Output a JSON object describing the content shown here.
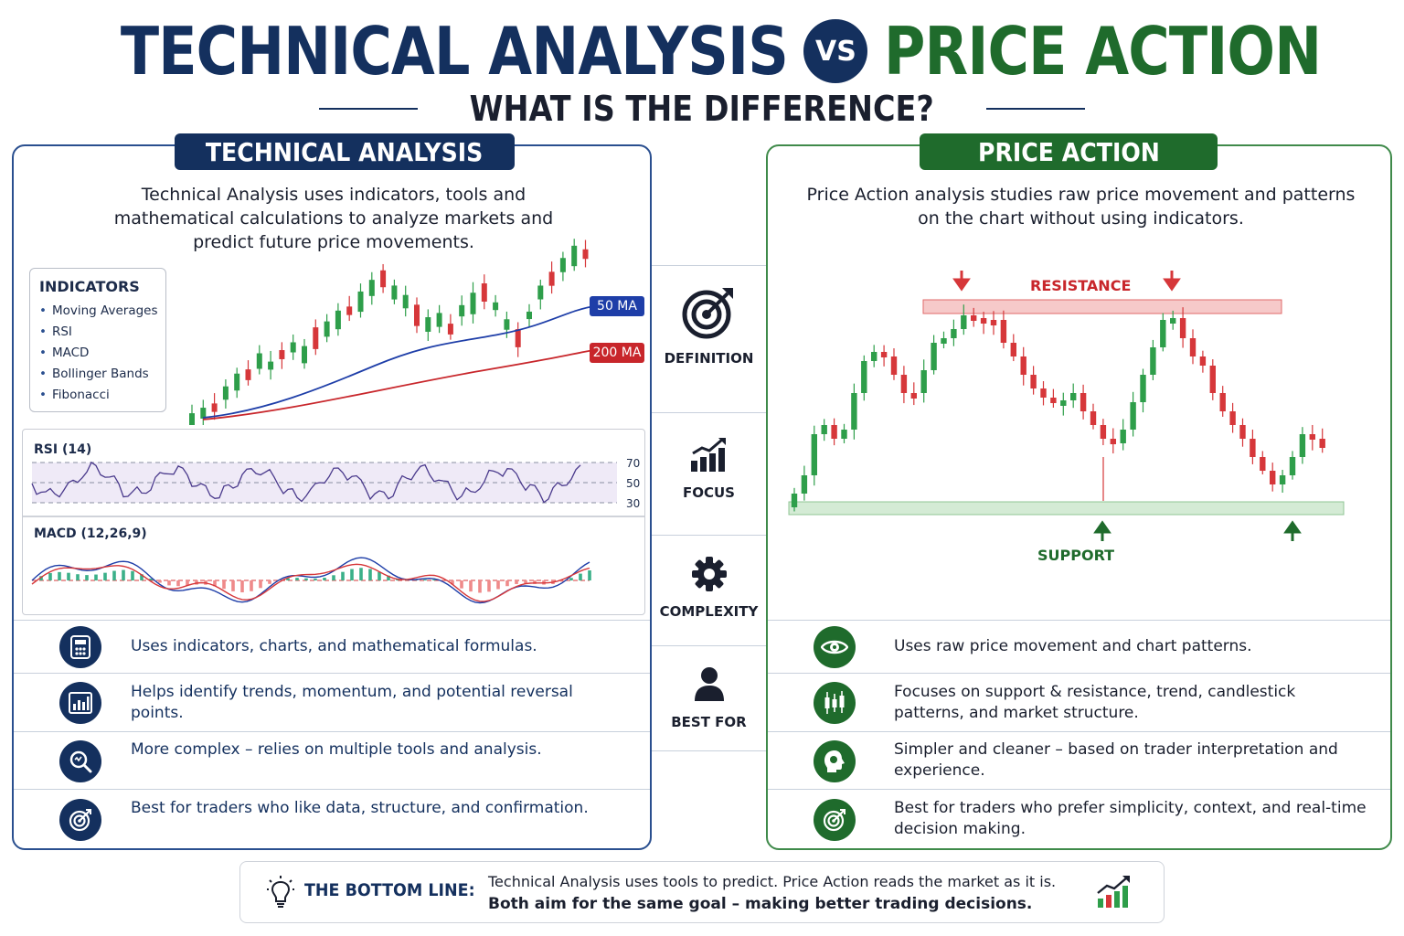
{
  "header": {
    "title_left": "TECHNICAL ANALYSIS",
    "vs": "VS",
    "title_right": "PRICE ACTION",
    "subtitle": "WHAT IS THE DIFFERENCE?"
  },
  "colors": {
    "navy": "#14305e",
    "green": "#1f6b2c",
    "bull": "#2e9e4a",
    "bear": "#d6373a"
  },
  "technical": {
    "heading": "TECHNICAL ANALYSIS",
    "description": "Technical Analysis uses indicators, tools and mathematical calculations to analyze markets and predict future price movements.",
    "indicators_title": "INDICATORS",
    "indicators": [
      "Moving Averages",
      "RSI",
      "MACD",
      "Bollinger Bands",
      "Fibonacci"
    ],
    "ma50_label": "50 MA",
    "ma200_label": "200 MA",
    "rsi_label": "RSI (14)",
    "rsi_levels": [
      "70",
      "50",
      "30"
    ],
    "macd_label": "MACD (12,26,9)",
    "rows": [
      {
        "icon": "calculator-icon",
        "text": "Uses indicators, charts, and mathematical formulas."
      },
      {
        "icon": "bar-chart-icon",
        "text": "Helps identify trends, momentum, and potential reversal points."
      },
      {
        "icon": "magnifier-icon",
        "text": "More complex – relies on multiple tools and analysis."
      },
      {
        "icon": "target-icon",
        "text": "Best for traders who like data, structure, and confirmation."
      }
    ]
  },
  "categories": [
    {
      "icon": "target-arrow-icon",
      "label": "DEFINITION"
    },
    {
      "icon": "growth-chart-icon",
      "label": "FOCUS"
    },
    {
      "icon": "gear-icon",
      "label": "COMPLEXITY"
    },
    {
      "icon": "person-icon",
      "label": "BEST FOR"
    }
  ],
  "price_action": {
    "heading": "PRICE ACTION",
    "description": "Price Action analysis studies raw price movement and patterns on the chart without using indicators.",
    "resistance_label": "RESISTANCE",
    "support_label": "SUPPORT",
    "rows": [
      {
        "icon": "eye-icon",
        "text": "Uses raw price movement and chart patterns."
      },
      {
        "icon": "candlestick-icon",
        "text": "Focuses on support & resistance, trend, candlestick patterns, and market structure."
      },
      {
        "icon": "head-icon",
        "text": "Simpler and cleaner – based on trader interpretation and experience."
      },
      {
        "icon": "target-icon",
        "text": "Best for traders who prefer simplicity, context, and real-time decision making."
      }
    ]
  },
  "bottom_line": {
    "icon": "lightbulb-icon",
    "label": "THE BOTTOM LINE:",
    "line1": "Technical Analysis uses tools to predict.  Price Action reads the market as it is.",
    "line2": "Both aim for the same goal – making better trading decisions.",
    "end_icon": "rising-chart-icon"
  }
}
